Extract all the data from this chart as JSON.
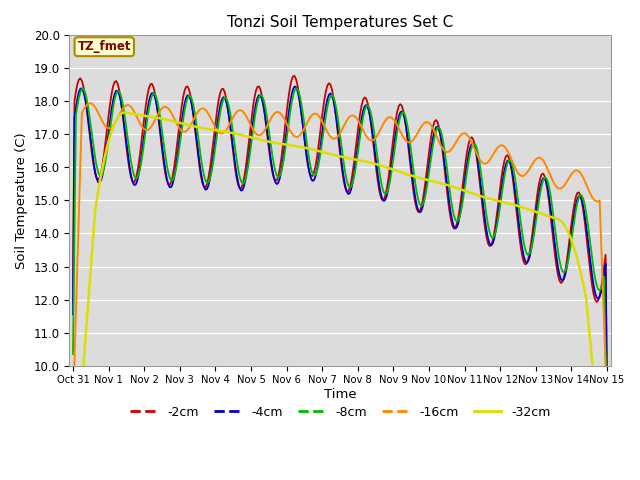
{
  "title": "Tonzi Soil Temperatures Set C",
  "xlabel": "Time",
  "ylabel": "Soil Temperature (C)",
  "ylim": [
    10.0,
    20.0
  ],
  "yticks": [
    10.0,
    11.0,
    12.0,
    13.0,
    14.0,
    15.0,
    16.0,
    17.0,
    18.0,
    19.0,
    20.0
  ],
  "xtick_labels": [
    "Oct 31",
    "Nov 1",
    "Nov 2",
    "Nov 3",
    "Nov 4",
    "Nov 5",
    "Nov 6",
    "Nov 7",
    "Nov 8",
    "Nov 9",
    "Nov 10",
    "Nov 11",
    "Nov 12",
    "Nov 13",
    "Nov 14",
    "Nov 15"
  ],
  "annotation_text": "TZ_fmet",
  "bg_color": "#dcdcdc",
  "line_colors": [
    "#cc0000",
    "#0000cc",
    "#00bb00",
    "#ff8800",
    "#dddd00"
  ],
  "line_labels": [
    "-2cm",
    "-4cm",
    "-8cm",
    "-16cm",
    "-32cm"
  ],
  "num_points": 360
}
